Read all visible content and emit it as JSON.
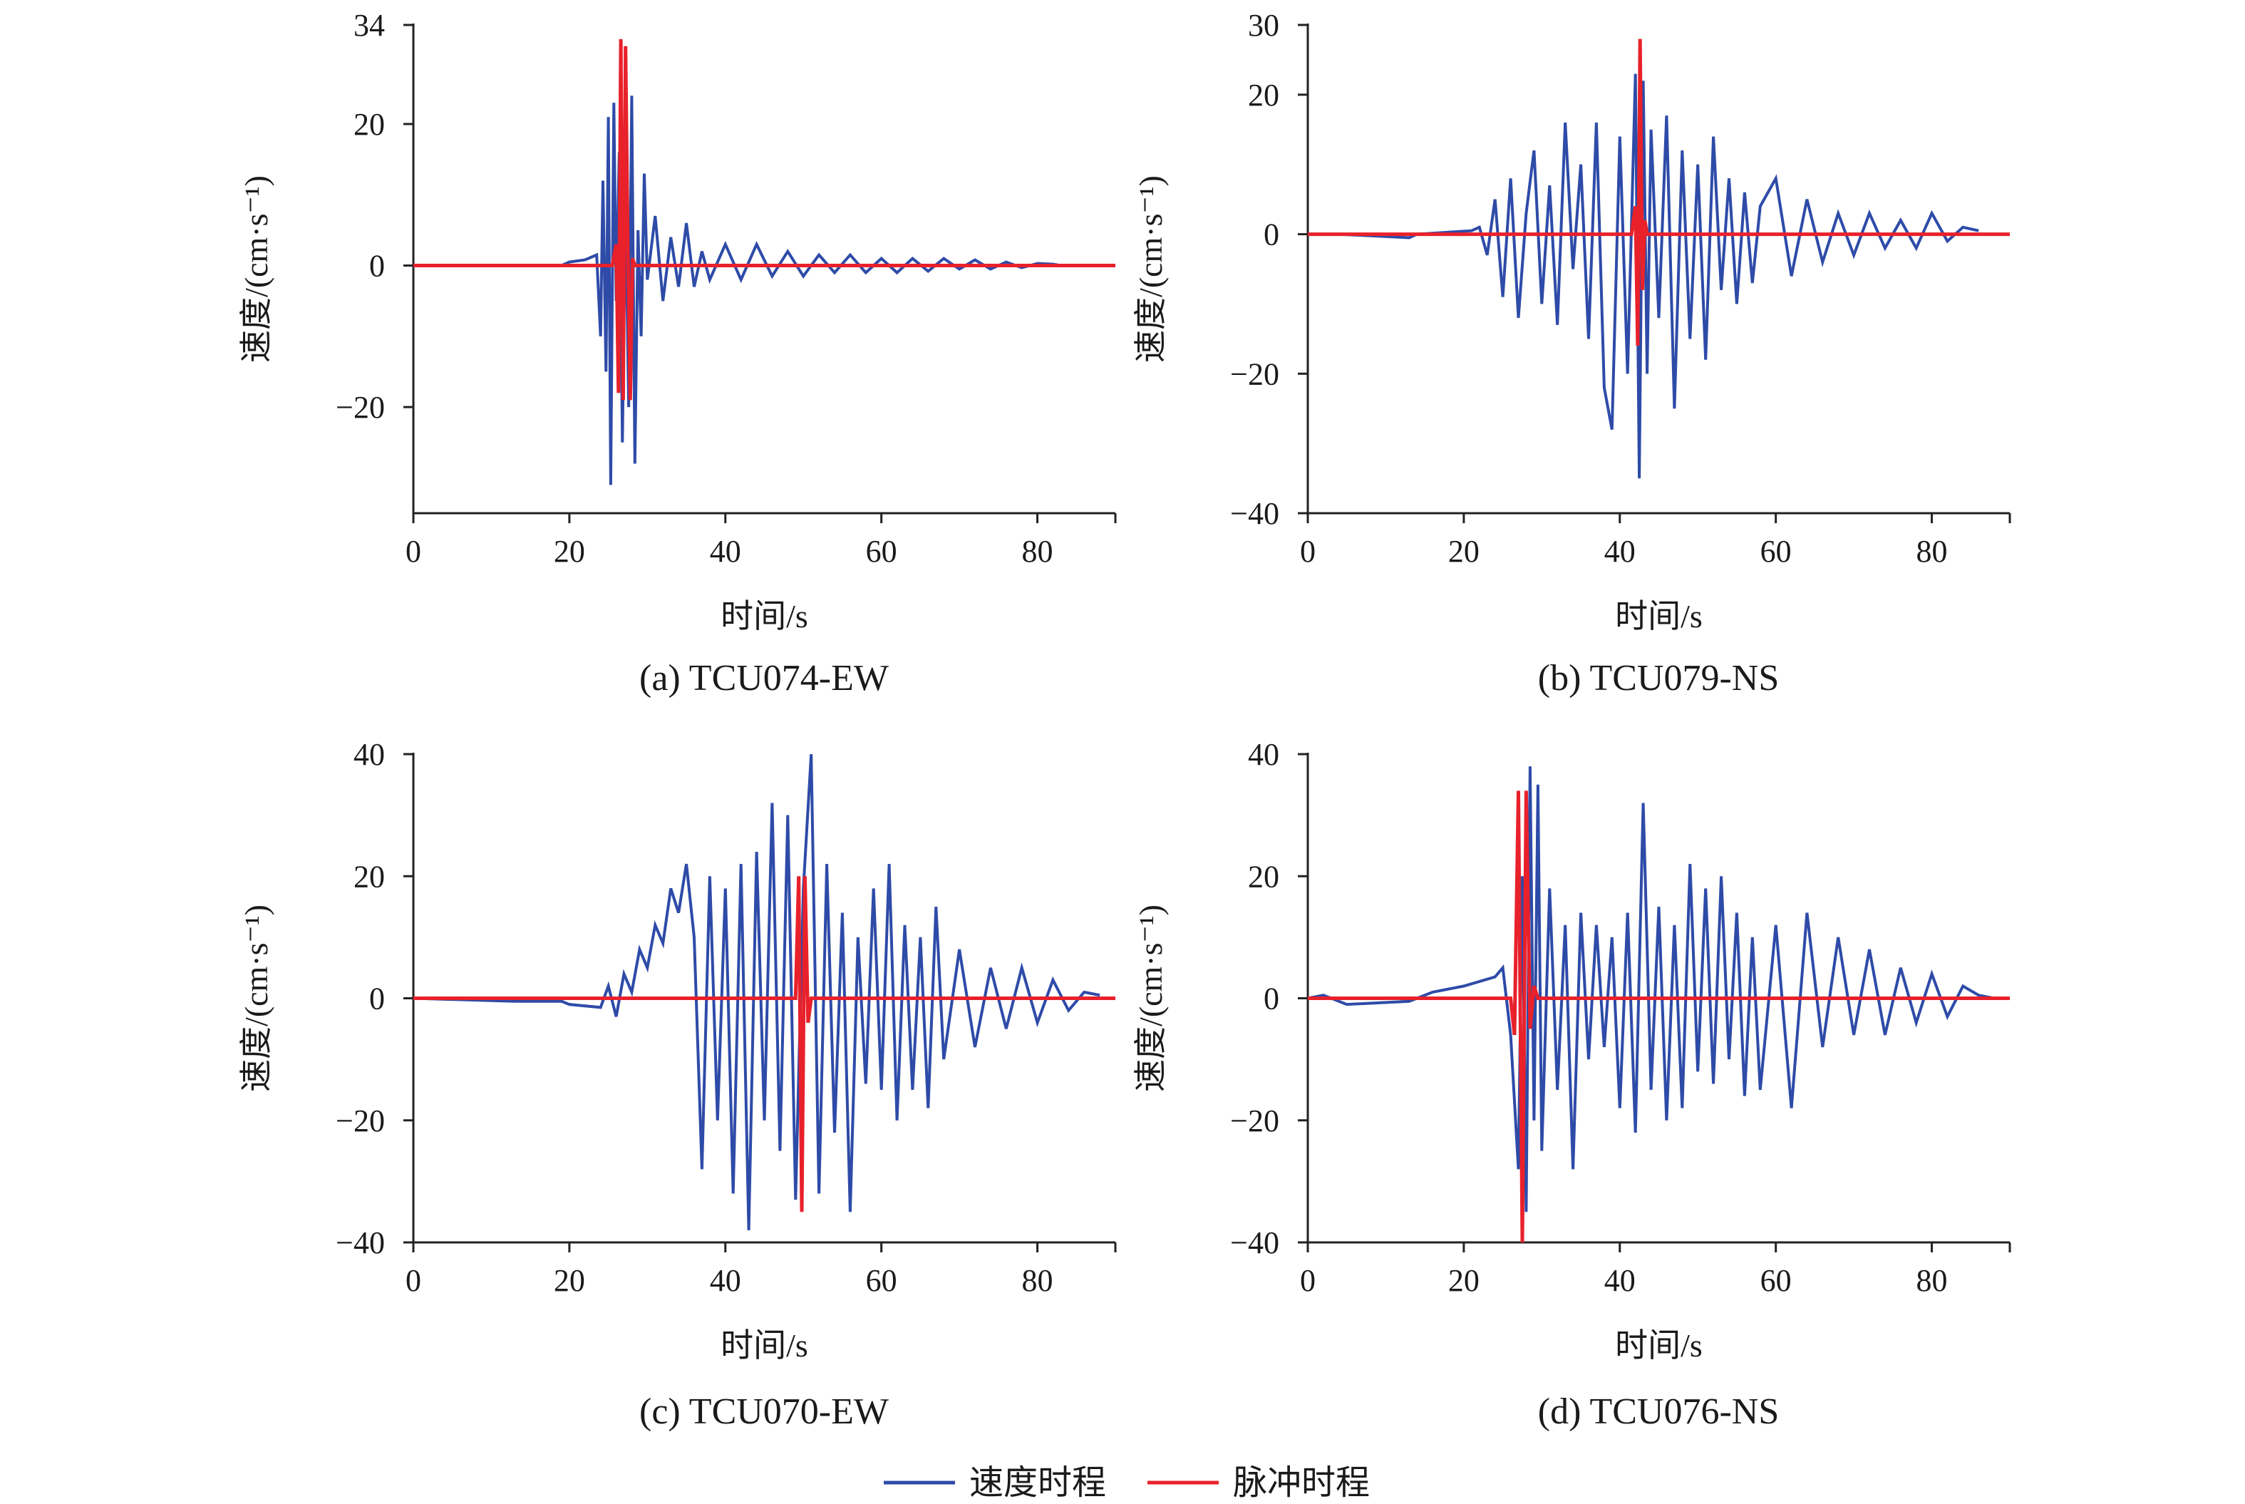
{
  "legend": {
    "items": [
      {
        "label": "速度时程",
        "color": "#2E4BA8"
      },
      {
        "label": "脉冲时程",
        "color": "#E8212B"
      }
    ]
  },
  "chart_data": [
    {
      "type": "line",
      "caption": "(a) TCU074-EW",
      "xlabel": "时间/s",
      "ylabel": "速度/(cm·s⁻¹)",
      "xlim": [
        0,
        90
      ],
      "ylim": [
        -35,
        34
      ],
      "xticks": [
        0,
        20,
        40,
        60,
        80
      ],
      "yticks": [
        -20,
        0,
        20,
        34
      ],
      "series": [
        {
          "key": "velocity",
          "color": "#2E4BA8",
          "x": [
            0,
            19,
            20,
            22,
            23.5,
            24,
            24.3,
            24.7,
            25,
            25.3,
            25.7,
            26,
            26.4,
            26.8,
            27.2,
            27.6,
            28,
            28.4,
            28.8,
            29.2,
            29.6,
            30,
            31,
            32,
            33,
            34,
            35,
            36,
            37,
            38,
            40,
            42,
            44,
            46,
            48,
            50,
            52,
            54,
            56,
            58,
            60,
            62,
            64,
            66,
            68,
            70,
            72,
            74,
            76,
            78,
            80,
            82,
            83
          ],
          "y": [
            0,
            0,
            0.5,
            0.8,
            1.5,
            -10,
            12,
            -15,
            21,
            -31,
            23,
            -5,
            16,
            -25,
            10,
            -20,
            24,
            -28,
            5,
            -10,
            13,
            -2,
            7,
            -5,
            4,
            -3,
            6,
            -3,
            2,
            -2,
            3,
            -2,
            3,
            -1.5,
            2,
            -1.5,
            1.5,
            -1,
            1.5,
            -1,
            1,
            -1,
            1,
            -0.8,
            1,
            -0.5,
            0.8,
            -0.5,
            0.5,
            -0.3,
            0.3,
            0.2,
            0
          ]
        },
        {
          "key": "pulse",
          "color": "#E8212B",
          "x": [
            0,
            25.5,
            26,
            26.3,
            26.6,
            26.9,
            27.2,
            27.5,
            27.8,
            28.1,
            28.4,
            29,
            90
          ],
          "y": [
            0,
            0,
            3,
            -18,
            32,
            -19,
            31,
            2,
            -19,
            1,
            0,
            0,
            0
          ]
        }
      ]
    },
    {
      "type": "line",
      "caption": "(b) TCU079-NS",
      "xlabel": "时间/s",
      "ylabel": "速度/(cm·s⁻¹)",
      "xlim": [
        0,
        90
      ],
      "ylim": [
        -40,
        30
      ],
      "xticks": [
        0,
        20,
        40,
        60,
        80
      ],
      "yticks": [
        -40,
        -20,
        0,
        20,
        30
      ],
      "series": [
        {
          "key": "velocity",
          "color": "#2E4BA8",
          "x": [
            0,
            4,
            13,
            14,
            21,
            22,
            23,
            24,
            25,
            26,
            27,
            28,
            29,
            30,
            31,
            32,
            33,
            34,
            35,
            36,
            37,
            38,
            39,
            40,
            41,
            42,
            42.5,
            43,
            43.5,
            44,
            45,
            46,
            47,
            48,
            49,
            50,
            51,
            52,
            53,
            54,
            55,
            56,
            57,
            58,
            60,
            62,
            64,
            66,
            68,
            70,
            72,
            74,
            76,
            78,
            80,
            82,
            84,
            86
          ],
          "y": [
            0,
            0,
            -0.5,
            0,
            0.5,
            1,
            -3,
            5,
            -9,
            8,
            -12,
            3,
            12,
            -10,
            7,
            -13,
            16,
            -5,
            10,
            -15,
            16,
            -22,
            -28,
            14,
            -20,
            23,
            -35,
            22,
            -20,
            15,
            -12,
            17,
            -25,
            12,
            -15,
            10,
            -18,
            14,
            -8,
            8,
            -10,
            6,
            -7,
            4,
            8,
            -6,
            5,
            -4,
            3,
            -3,
            3,
            -2,
            2,
            -2,
            3,
            -1,
            1,
            0.5
          ]
        },
        {
          "key": "pulse",
          "color": "#E8212B",
          "x": [
            0,
            41.5,
            42,
            42.3,
            42.6,
            42.9,
            43.2,
            43.5,
            44,
            90
          ],
          "y": [
            0,
            0,
            4,
            -16,
            28,
            -8,
            2,
            0,
            0,
            0
          ]
        }
      ]
    },
    {
      "type": "line",
      "caption": "(c) TCU070-EW",
      "xlabel": "时间/s",
      "ylabel": "速度/(cm·s⁻¹)",
      "xlim": [
        0,
        90
      ],
      "ylim": [
        -40,
        40
      ],
      "xticks": [
        0,
        20,
        40,
        60,
        80
      ],
      "yticks": [
        -40,
        -20,
        0,
        20,
        40
      ],
      "series": [
        {
          "key": "velocity",
          "color": "#2E4BA8",
          "x": [
            0,
            13,
            19,
            20,
            24,
            25,
            26,
            27,
            28,
            29,
            30,
            31,
            32,
            33,
            34,
            35,
            36,
            37,
            38,
            39,
            40,
            41,
            42,
            43,
            44,
            45,
            46,
            47,
            48,
            49,
            50,
            51,
            52,
            53,
            54,
            55,
            56,
            57,
            58,
            59,
            60,
            61,
            62,
            63,
            64,
            65,
            66,
            67,
            68,
            70,
            72,
            74,
            76,
            78,
            80,
            82,
            84,
            86,
            88
          ],
          "y": [
            0,
            -0.5,
            -0.5,
            -1,
            -1.5,
            2,
            -3,
            4,
            1,
            8,
            5,
            12,
            9,
            18,
            14,
            22,
            10,
            -28,
            20,
            -20,
            18,
            -32,
            22,
            -38,
            24,
            -20,
            32,
            -25,
            30,
            -33,
            18,
            40,
            -32,
            22,
            -22,
            14,
            -35,
            10,
            -14,
            18,
            -15,
            22,
            -20,
            12,
            -15,
            10,
            -18,
            15,
            -10,
            8,
            -8,
            5,
            -5,
            5,
            -4,
            3,
            -2,
            1,
            0.5
          ]
        },
        {
          "key": "pulse",
          "color": "#E8212B",
          "x": [
            0,
            49,
            49.4,
            49.8,
            50.2,
            50.6,
            51,
            52,
            90
          ],
          "y": [
            0,
            0,
            20,
            -35,
            20,
            -4,
            0,
            0,
            0
          ]
        }
      ]
    },
    {
      "type": "line",
      "caption": "(d) TCU076-NS",
      "xlabel": "时间/s",
      "ylabel": "速度/(cm·s⁻¹)",
      "xlim": [
        0,
        90
      ],
      "ylim": [
        -40,
        40
      ],
      "xticks": [
        0,
        20,
        40,
        60,
        80
      ],
      "yticks": [
        -40,
        -20,
        0,
        20,
        40
      ],
      "series": [
        {
          "key": "velocity",
          "color": "#2E4BA8",
          "x": [
            0,
            2,
            5,
            13,
            16,
            20,
            24,
            25,
            26,
            27,
            27.5,
            28,
            28.5,
            29,
            29.5,
            30,
            31,
            32,
            33,
            34,
            35,
            36,
            37,
            38,
            39,
            40,
            41,
            42,
            43,
            44,
            45,
            46,
            47,
            48,
            49,
            50,
            51,
            52,
            53,
            54,
            55,
            56,
            57,
            58,
            60,
            62,
            64,
            66,
            68,
            70,
            72,
            74,
            76,
            78,
            80,
            82,
            84,
            86,
            88
          ],
          "y": [
            0,
            0.5,
            -1,
            -0.5,
            1,
            2,
            3.5,
            5,
            -6,
            -28,
            20,
            -35,
            38,
            -20,
            35,
            -25,
            18,
            -15,
            12,
            -28,
            14,
            -10,
            12,
            -8,
            10,
            -18,
            14,
            -22,
            32,
            -15,
            15,
            -20,
            12,
            -18,
            22,
            -12,
            18,
            -14,
            20,
            -10,
            14,
            -16,
            10,
            -15,
            12,
            -18,
            14,
            -8,
            10,
            -6,
            8,
            -6,
            5,
            -4,
            4,
            -3,
            2,
            0.5,
            0
          ]
        },
        {
          "key": "pulse",
          "color": "#E8212B",
          "x": [
            0,
            26,
            26.5,
            27,
            27.5,
            28,
            28.5,
            29,
            29.5,
            30,
            90
          ],
          "y": [
            0,
            0,
            -6,
            34,
            -40,
            34,
            -5,
            2,
            0,
            0,
            0
          ]
        }
      ]
    }
  ]
}
